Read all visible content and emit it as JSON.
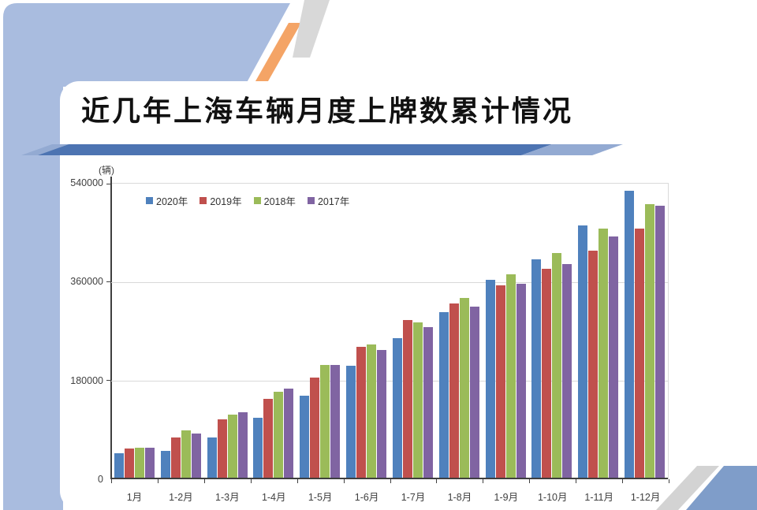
{
  "slide": {
    "title": "近几年上海车辆月度上牌数累计情况"
  },
  "decor": {
    "left_band_color": "#a9bcdf",
    "orange_stripe_color": "#f4a466",
    "gray_stripe_color": "#d8d8d8",
    "banner_dark_color": "#4d74b2",
    "banner_light_color": "#93aad2",
    "corner_blue_color": "#7f9dc9",
    "corner_gray_color": "#d3d3d3"
  },
  "chart_data": {
    "type": "bar",
    "title": "",
    "unit_label": "(辆)",
    "categories": [
      "1月",
      "1-2月",
      "1-3月",
      "1-4月",
      "1-5月",
      "1-6月",
      "1-7月",
      "1-8月",
      "1-9月",
      "1-10月",
      "1-11月",
      "1-12月"
    ],
    "series": [
      {
        "name": "2020年",
        "color": "#4f81bd",
        "values": [
          47000,
          52000,
          76000,
          113000,
          152000,
          207000,
          258000,
          306000,
          364000,
          402000,
          464000,
          527000
        ]
      },
      {
        "name": "2019年",
        "color": "#c0504d",
        "values": [
          56000,
          77000,
          109000,
          147000,
          186000,
          242000,
          291000,
          321000,
          354000,
          385000,
          418000,
          458000
        ]
      },
      {
        "name": "2018年",
        "color": "#9bbb59",
        "values": [
          58000,
          90000,
          118000,
          160000,
          209000,
          246000,
          286000,
          331000,
          374000,
          414000,
          458000,
          503000
        ]
      },
      {
        "name": "2017年",
        "color": "#8064a2",
        "values": [
          57000,
          84000,
          122000,
          165000,
          209000,
          236000,
          278000,
          315000,
          357000,
          393000,
          444000,
          500000
        ]
      }
    ],
    "ylim": [
      0,
      540000
    ],
    "yticks": [
      0,
      180000,
      360000,
      540000
    ],
    "grid": true,
    "legend_position": "top-inside-left",
    "axis_text_color": "#404040"
  }
}
